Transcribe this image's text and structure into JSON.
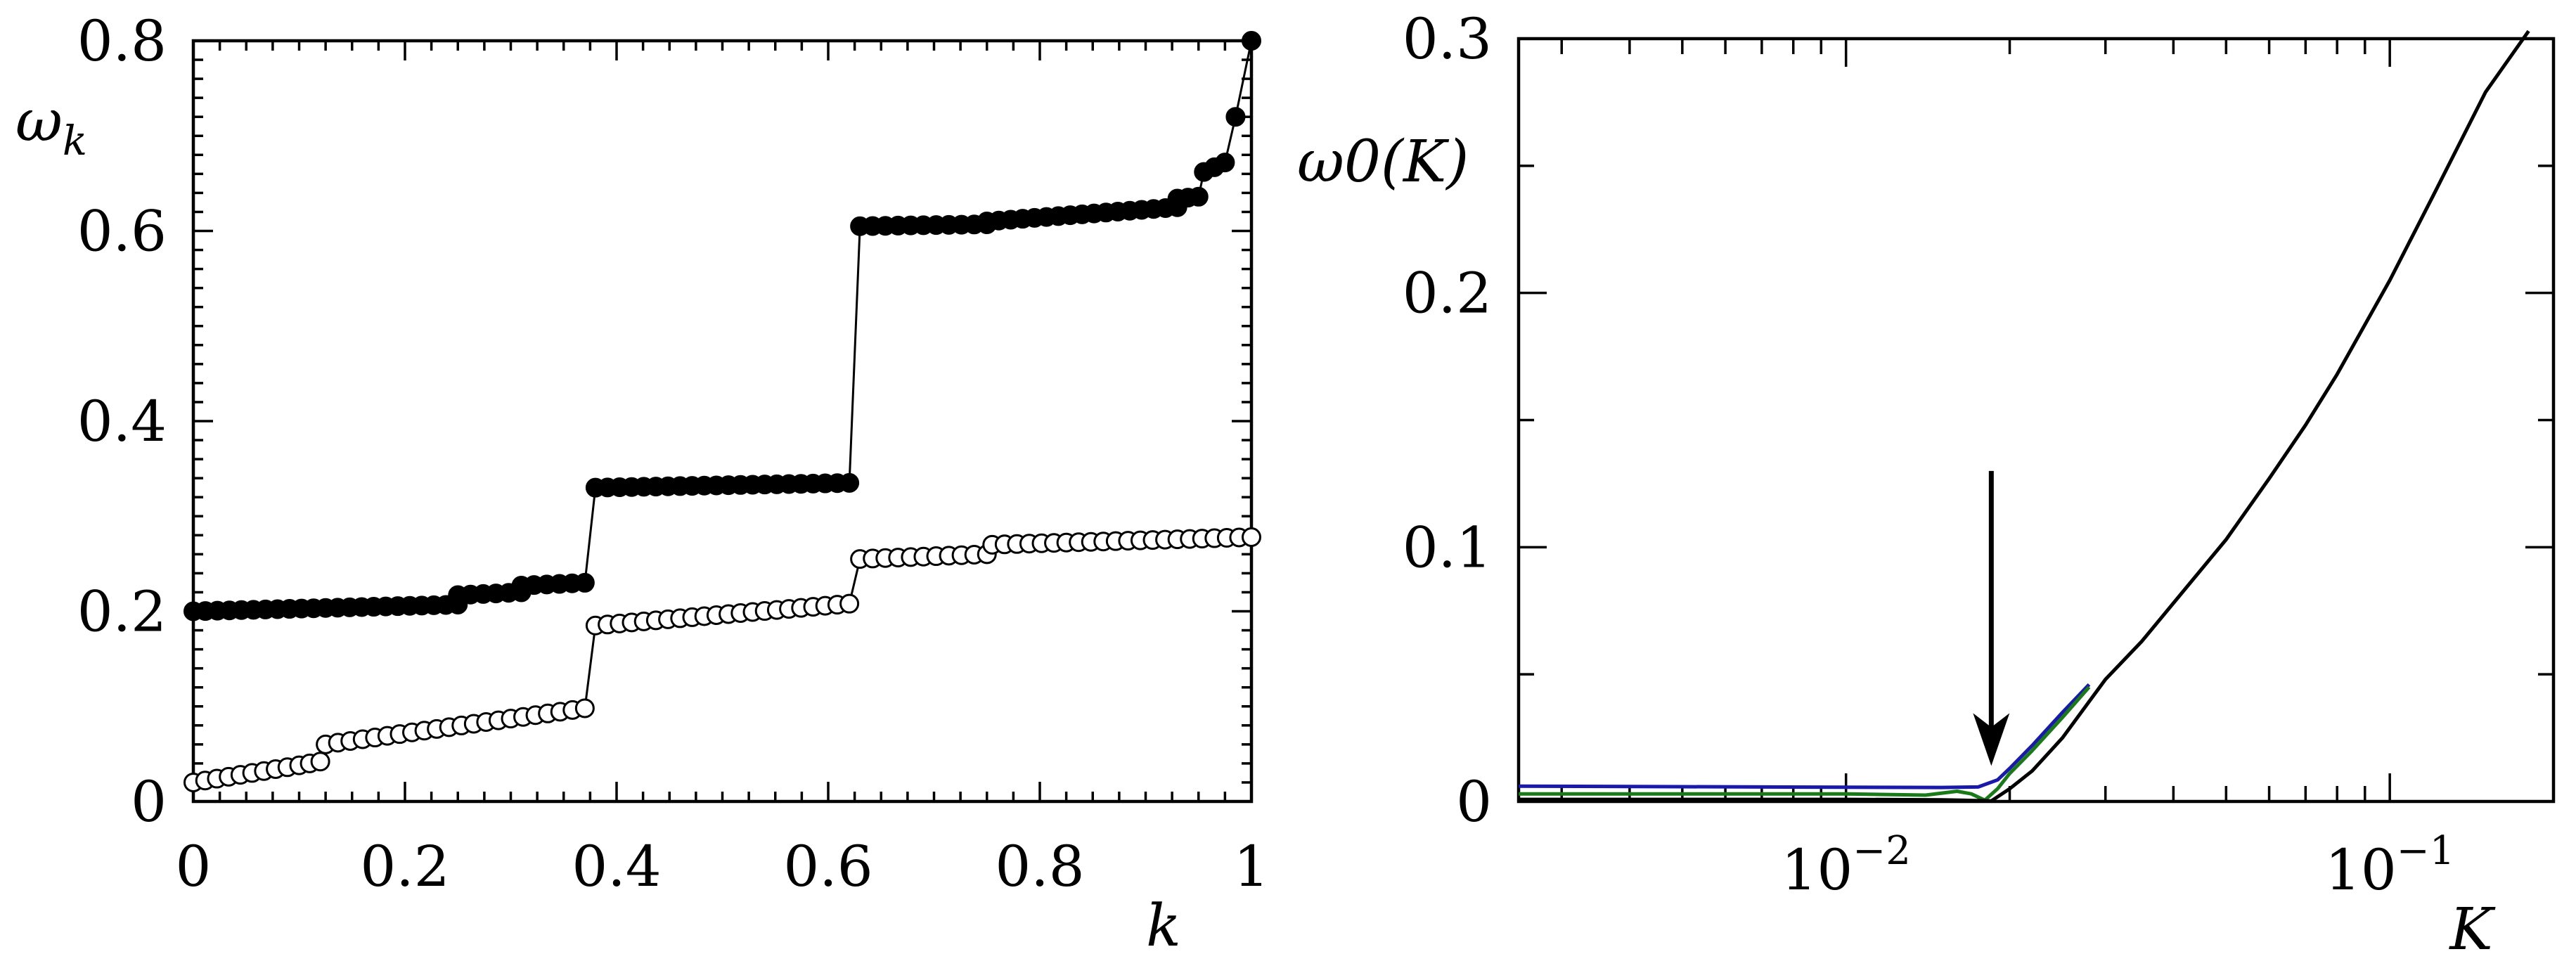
{
  "chart_data": [
    {
      "type": "line",
      "panel": "left",
      "xlabel": "k",
      "ylabel": "ω",
      "ylabel_sub": "k",
      "xlim": [
        0,
        1
      ],
      "ylim": [
        0,
        0.8
      ],
      "xticks": [
        0,
        0.2,
        0.4,
        0.6,
        0.8,
        1
      ],
      "xtick_labels": [
        "0",
        "0.2",
        "0.4",
        "0.6",
        "0.8",
        "1"
      ],
      "yticks": [
        0,
        0.2,
        0.4,
        0.6,
        0.8
      ],
      "ytick_labels": [
        "0",
        "0.2",
        "0.4",
        "0.6",
        "0.8"
      ],
      "series": [
        {
          "name": "filled markers",
          "marker": "filled-circle",
          "segments": [
            {
              "k": [
                0,
                0.25
              ],
              "w": [
                0.2,
                0.207
              ]
            },
            {
              "k": [
                0.25,
                0.31
              ],
              "w": [
                0.217,
                0.22
              ]
            },
            {
              "k": [
                0.31,
                0.37
              ],
              "w": [
                0.227,
                0.23
              ]
            },
            {
              "k": [
                0.38,
                0.62
              ],
              "w": [
                0.33,
                0.335
              ]
            },
            {
              "k": [
                0.63,
                0.75
              ],
              "w": [
                0.605,
                0.607
              ]
            },
            {
              "k": [
                0.75,
                0.93
              ],
              "w": [
                0.61,
                0.625
              ]
            },
            {
              "k": [
                0.93,
                0.95
              ],
              "w": [
                0.634,
                0.636
              ]
            },
            {
              "k": [
                0.955,
                0.975
              ],
              "w": [
                0.662,
                0.672
              ]
            }
          ],
          "extra_points": [
            {
              "k": 0.985,
              "w": 0.72
            },
            {
              "k": 1.0,
              "w": 0.8
            }
          ]
        },
        {
          "name": "open markers",
          "marker": "open-circle",
          "segments": [
            {
              "k": [
                0,
                0.1
              ],
              "w": [
                0.02,
                0.038
              ]
            },
            {
              "k": [
                0.11,
                0.12
              ],
              "w": [
                0.04,
                0.042
              ]
            },
            {
              "k": [
                0.125,
                0.37
              ],
              "w": [
                0.06,
                0.098
              ]
            },
            {
              "k": [
                0.38,
                0.62
              ],
              "w": [
                0.185,
                0.208
              ]
            },
            {
              "k": [
                0.63,
                0.75
              ],
              "w": [
                0.255,
                0.26
              ]
            },
            {
              "k": [
                0.755,
                1.0
              ],
              "w": [
                0.27,
                0.278
              ]
            }
          ],
          "extra_points": []
        }
      ]
    },
    {
      "type": "line",
      "panel": "right",
      "xscale": "log",
      "xlabel": "K",
      "ylabel": "ω0(K)",
      "xlim": [
        0.0025,
        0.2
      ],
      "ylim": [
        0,
        0.3
      ],
      "xtick_labels": [
        {
          "value": 0.01,
          "base": "10",
          "exp": "−2"
        },
        {
          "value": 0.1,
          "base": "10",
          "exp": "−1"
        }
      ],
      "yticks": [
        0,
        0.1,
        0.2,
        0.3
      ],
      "ytick_labels": [
        "0",
        "0.1",
        "0.2",
        "0.3"
      ],
      "series": [
        {
          "name": "blue",
          "color": "#1a1aaa",
          "K": [
            0.0025,
            0.005,
            0.01,
            0.015,
            0.0175,
            0.019,
            0.02,
            0.022,
            0.025,
            0.028
          ],
          "w": [
            0.006,
            0.0058,
            0.0056,
            0.0055,
            0.0057,
            0.0085,
            0.013,
            0.022,
            0.035,
            0.046
          ]
        },
        {
          "name": "green",
          "color": "#1a7a1a",
          "K": [
            0.0025,
            0.005,
            0.01,
            0.014,
            0.016,
            0.017,
            0.018,
            0.019,
            0.02,
            0.022,
            0.025,
            0.028
          ],
          "w": [
            0.003,
            0.003,
            0.003,
            0.0025,
            0.004,
            0.003,
            0.0005,
            0.005,
            0.011,
            0.02,
            0.033,
            0.045
          ]
        },
        {
          "name": "black",
          "color": "#000000",
          "K": [
            0.0025,
            0.005,
            0.01,
            0.015,
            0.017,
            0.0185,
            0.02,
            0.022,
            0.025,
            0.03,
            0.035,
            0.04,
            0.05,
            0.06,
            0.07,
            0.08,
            0.1,
            0.12,
            0.15,
            0.18
          ],
          "w": [
            0.0008,
            0.0008,
            0.0008,
            0.0006,
            0.0004,
            0.0002,
            0.005,
            0.012,
            0.025,
            0.048,
            0.063,
            0.078,
            0.103,
            0.127,
            0.148,
            0.168,
            0.205,
            0.238,
            0.279,
            0.303
          ]
        }
      ],
      "annotations": [
        {
          "type": "arrow",
          "direction": "down",
          "K": 0.0185,
          "w_from": 0.13,
          "w_to": 0.014
        }
      ]
    }
  ]
}
